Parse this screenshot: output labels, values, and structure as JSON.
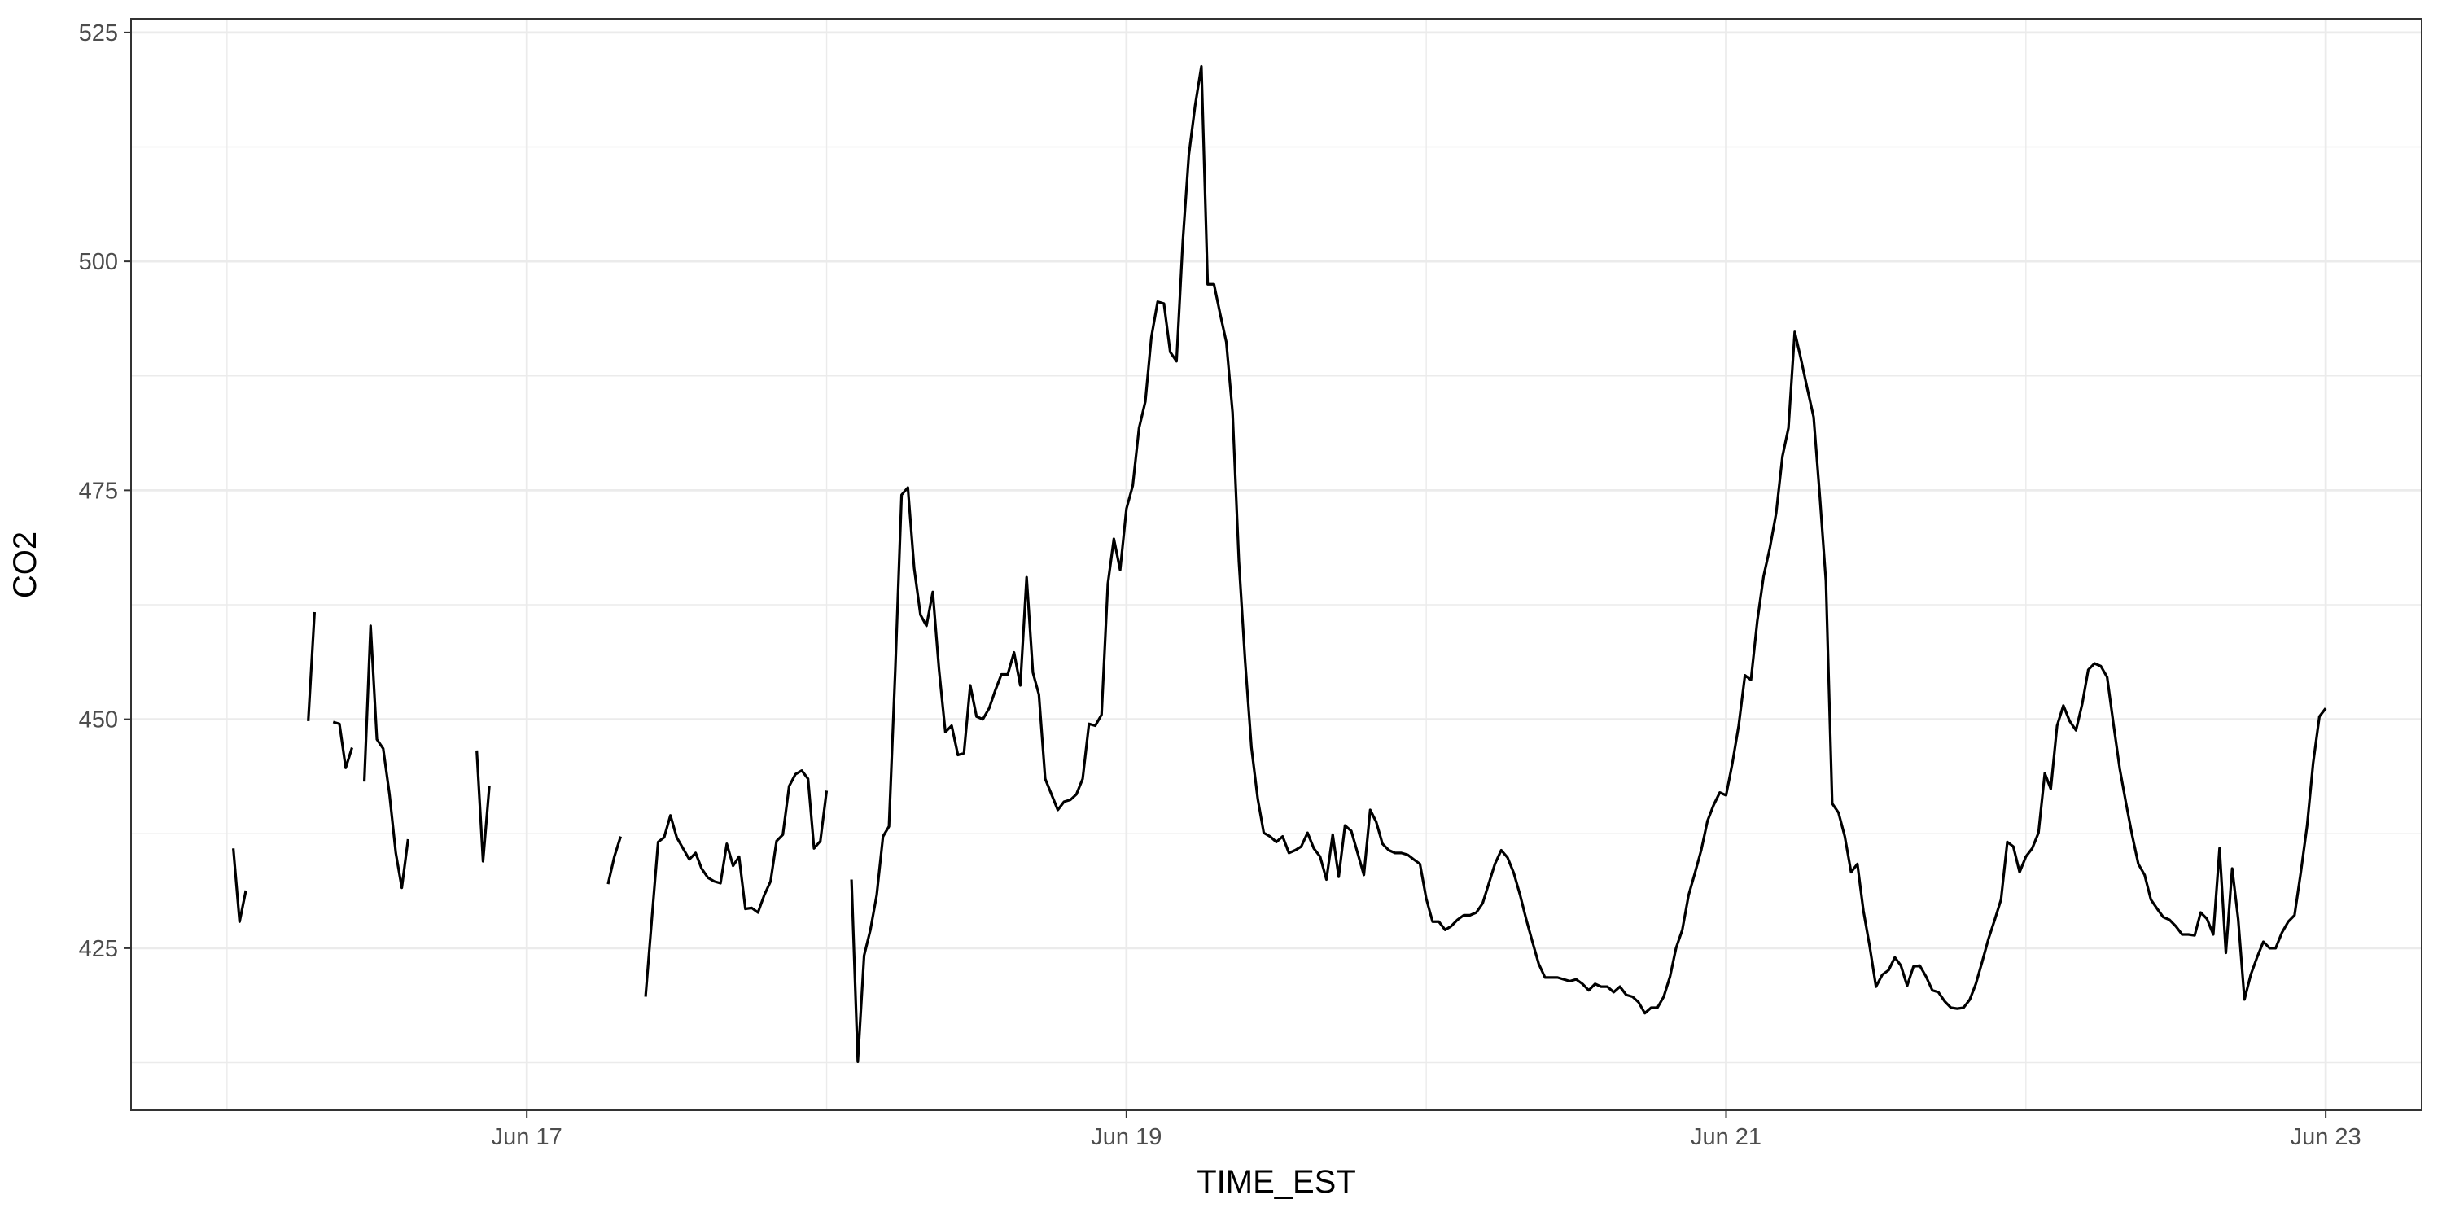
{
  "chart_data": {
    "type": "line",
    "x_label": "TIME_EST",
    "y_label": "CO2",
    "color": "#000000",
    "grid": true,
    "minor_grid": true,
    "xlim": [
      15.68,
      23.32
    ],
    "ylim": [
      407.3,
      526.5
    ],
    "xticks": [
      {
        "value": 17,
        "label": "Jun 17"
      },
      {
        "value": 19,
        "label": "Jun 19"
      },
      {
        "value": 21,
        "label": "Jun 21"
      },
      {
        "value": 23,
        "label": "Jun 23"
      }
    ],
    "yticks": [
      425,
      450,
      475,
      500,
      525
    ],
    "x": [
      16.021,
      16.042,
      16.063,
      16.167,
      16.271,
      16.292,
      16.313,
      16.354,
      16.375,
      16.396,
      16.417,
      16.438,
      16.458,
      16.479,
      16.5,
      16.521,
      16.542,
      16.563,
      16.583,
      16.604,
      16.729,
      16.833,
      16.854,
      16.875,
      17.042,
      17.271,
      17.292,
      17.313,
      17.354,
      17.396,
      17.417,
      17.438,
      17.458,
      17.479,
      17.5,
      17.521,
      17.542,
      17.563,
      17.583,
      17.604,
      17.625,
      17.646,
      17.667,
      17.688,
      17.708,
      17.729,
      17.75,
      17.771,
      17.792,
      17.813,
      17.833,
      17.854,
      17.875,
      17.896,
      17.917,
      17.938,
      17.958,
      17.979,
      18.0,
      18.042,
      18.083,
      18.104,
      18.125,
      18.146,
      18.167,
      18.188,
      18.208,
      18.229,
      18.25,
      18.271,
      18.292,
      18.313,
      18.333,
      18.354,
      18.375,
      18.396,
      18.417,
      18.438,
      18.458,
      18.479,
      18.5,
      18.521,
      18.542,
      18.563,
      18.583,
      18.604,
      18.625,
      18.646,
      18.667,
      18.688,
      18.708,
      18.729,
      18.75,
      18.771,
      18.792,
      18.813,
      18.833,
      18.854,
      18.875,
      18.896,
      18.917,
      18.938,
      18.958,
      18.979,
      19.0,
      19.021,
      19.042,
      19.063,
      19.083,
      19.104,
      19.125,
      19.146,
      19.167,
      19.188,
      19.208,
      19.229,
      19.25,
      19.271,
      19.292,
      19.313,
      19.333,
      19.354,
      19.375,
      19.396,
      19.417,
      19.438,
      19.458,
      19.479,
      19.5,
      19.521,
      19.542,
      19.563,
      19.583,
      19.604,
      19.625,
      19.646,
      19.667,
      19.688,
      19.708,
      19.729,
      19.75,
      19.771,
      19.792,
      19.813,
      19.833,
      19.854,
      19.875,
      19.896,
      19.917,
      19.938,
      19.958,
      19.979,
      20.0,
      20.021,
      20.042,
      20.063,
      20.083,
      20.104,
      20.125,
      20.146,
      20.167,
      20.188,
      20.208,
      20.229,
      20.25,
      20.271,
      20.292,
      20.313,
      20.333,
      20.354,
      20.375,
      20.396,
      20.417,
      20.438,
      20.458,
      20.479,
      20.5,
      20.521,
      20.542,
      20.563,
      20.583,
      20.604,
      20.625,
      20.646,
      20.667,
      20.688,
      20.708,
      20.729,
      20.75,
      20.771,
      20.792,
      20.813,
      20.833,
      20.854,
      20.875,
      20.896,
      20.917,
      20.938,
      20.958,
      20.979,
      21.0,
      21.021,
      21.042,
      21.063,
      21.083,
      21.104,
      21.125,
      21.146,
      21.167,
      21.188,
      21.208,
      21.229,
      21.25,
      21.271,
      21.292,
      21.313,
      21.333,
      21.354,
      21.375,
      21.396,
      21.417,
      21.438,
      21.458,
      21.479,
      21.5,
      21.521,
      21.542,
      21.563,
      21.583,
      21.604,
      21.625,
      21.646,
      21.667,
      21.688,
      21.708,
      21.729,
      21.75,
      21.771,
      21.792,
      21.813,
      21.833,
      21.854,
      21.875,
      21.896,
      21.917,
      21.938,
      21.958,
      21.979,
      22.0,
      22.021,
      22.042,
      22.063,
      22.083,
      22.104,
      22.125,
      22.146,
      22.167,
      22.188,
      22.208,
      22.229,
      22.25,
      22.271,
      22.292,
      22.313,
      22.333,
      22.354,
      22.375,
      22.396,
      22.417,
      22.438,
      22.458,
      22.479,
      22.5,
      22.521,
      22.542,
      22.563,
      22.583,
      22.604,
      22.625,
      22.646,
      22.667,
      22.688,
      22.708,
      22.729,
      22.75,
      22.771,
      22.792,
      22.813,
      22.833,
      22.854,
      22.875,
      22.896,
      22.917,
      22.938,
      22.958,
      22.979,
      23.0
    ],
    "values": [
      435.9,
      427.9,
      431.3,
      null,
      449.8,
      461.7,
      null,
      449.7,
      449.5,
      444.7,
      446.9,
      null,
      443.2,
      460.2,
      447.8,
      446.8,
      441.8,
      435.4,
      431.6,
      436.9,
      null,
      446.6,
      434.5,
      442.7,
      null,
      432.0,
      435.0,
      437.2,
      null,
      419.7,
      428.2,
      436.6,
      437.1,
      439.5,
      437.1,
      435.9,
      434.7,
      435.4,
      433.7,
      432.7,
      432.3,
      432.1,
      436.4,
      434.0,
      435.0,
      429.3,
      429.4,
      428.9,
      430.8,
      432.3,
      436.7,
      437.4,
      442.7,
      444.0,
      444.4,
      443.5,
      435.9,
      436.7,
      442.2,
      null,
      432.5,
      412.6,
      424.2,
      427.0,
      430.8,
      437.2,
      438.3,
      455.4,
      474.5,
      475.3,
      466.5,
      461.4,
      460.2,
      463.9,
      455.4,
      448.6,
      449.3,
      446.1,
      446.3,
      453.7,
      450.3,
      450.0,
      451.2,
      453.2,
      454.9,
      454.9,
      457.3,
      453.7,
      465.5,
      455.1,
      452.7,
      443.5,
      441.8,
      440.1,
      441.0,
      441.2,
      441.8,
      443.5,
      449.5,
      449.3,
      450.5,
      464.8,
      469.7,
      466.3,
      473.0,
      475.5,
      481.8,
      484.7,
      491.7,
      495.6,
      495.4,
      490.1,
      489.1,
      502.2,
      511.6,
      517.0,
      521.3,
      497.5,
      497.5,
      494.2,
      491.2,
      483.5,
      467.3,
      456.3,
      446.9,
      441.3,
      437.6,
      437.2,
      436.6,
      437.2,
      435.4,
      435.7,
      436.1,
      437.6,
      435.9,
      435.0,
      432.5,
      437.4,
      432.8,
      438.4,
      437.8,
      435.4,
      433.0,
      440.1,
      438.8,
      436.4,
      435.7,
      435.4,
      435.4,
      435.2,
      434.7,
      434.2,
      430.4,
      427.9,
      427.9,
      427.0,
      427.4,
      428.1,
      428.6,
      428.6,
      428.9,
      429.9,
      432.0,
      434.2,
      435.7,
      434.9,
      433.2,
      430.8,
      428.2,
      425.7,
      423.3,
      421.8,
      421.8,
      421.8,
      421.6,
      421.4,
      421.6,
      421.1,
      420.4,
      421.1,
      420.8,
      420.8,
      420.2,
      420.8,
      419.9,
      419.7,
      419.1,
      417.9,
      418.5,
      418.5,
      419.7,
      421.9,
      425.0,
      427.0,
      430.8,
      433.2,
      435.7,
      438.9,
      440.6,
      442.0,
      441.7,
      445.2,
      449.3,
      454.8,
      454.3,
      460.7,
      465.6,
      468.7,
      472.5,
      478.7,
      481.8,
      492.3,
      489.3,
      486.1,
      483.0,
      474.2,
      465.1,
      440.8,
      439.8,
      437.2,
      433.3,
      434.2,
      429.1,
      425.2,
      420.8,
      422.1,
      422.6,
      424.0,
      423.1,
      420.9,
      423.0,
      423.1,
      421.9,
      420.4,
      420.2,
      419.2,
      418.5,
      418.4,
      418.5,
      419.4,
      421.1,
      423.5,
      426.0,
      428.1,
      430.3,
      436.6,
      436.1,
      433.3,
      435.0,
      435.9,
      437.6,
      444.1,
      442.4,
      449.3,
      451.5,
      449.8,
      448.8,
      451.7,
      455.4,
      456.1,
      455.8,
      454.6,
      449.5,
      444.6,
      441.0,
      437.4,
      434.2,
      433.0,
      430.3,
      429.3,
      428.4,
      428.1,
      427.4,
      426.5,
      426.5,
      426.4,
      428.9,
      428.2,
      426.5,
      435.9,
      424.5,
      433.7,
      428.2,
      419.4,
      422.1,
      424.0,
      425.7,
      425.0,
      425.0,
      426.7,
      427.9,
      428.6,
      433.3,
      438.4,
      445.2,
      450.3,
      451.2
    ]
  }
}
